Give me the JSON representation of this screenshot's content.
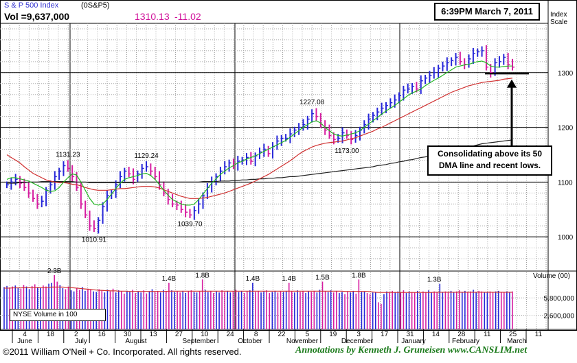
{
  "header": {
    "name": "S & P 500 Index",
    "symbol": "(0S&P5)",
    "volume": "Vol =9,637,000",
    "price": "1310.13",
    "change": "-11.02",
    "timestamp": "6:39PM March 7, 2011",
    "scale_label_1": "Index",
    "scale_label_2": "Scale"
  },
  "footer": {
    "copyright": "©2011 William O'Neil + Co. Incorporated. All rights reserved.",
    "annotations": "Annotations by Kenneth J. Gruneisen  www.CANSLIM.net"
  },
  "volume_box_label": "NYSE Volume in 100",
  "annotation_note_line1": "Consolidating above its 50",
  "annotation_note_line2": "DMA line and recent lows.",
  "colors": {
    "up_bar": "#2626d8",
    "down_bar": "#d61ca0",
    "ma50": "#22b822",
    "ma200_red": "#d03030",
    "ma_long": "#222222",
    "price_text": "#d0109a",
    "footer_green": "#1a7a1a"
  },
  "chart_data": [
    {
      "type": "bar",
      "subtype": "ohlc-price",
      "title": "S & P 500 Index",
      "y_ticks": [
        1000,
        1100,
        1200,
        1300
      ],
      "ylim": [
        940,
        1390
      ],
      "grid": true,
      "dates_ticks": [
        "4",
        "18",
        "2",
        "16",
        "30",
        "13",
        "27",
        "10",
        "24",
        "8",
        "22",
        "5",
        "19",
        "3",
        "17",
        "31",
        "14",
        "28",
        "11",
        "25",
        "11"
      ],
      "month_labels": [
        "June",
        "July",
        "August",
        "September",
        "October",
        "November",
        "December",
        "January",
        "February",
        "March"
      ],
      "annotations": [
        {
          "label": "1131.23",
          "value": 1131.23
        },
        {
          "label": "1010.91",
          "value": 1010.91
        },
        {
          "label": "1129.24",
          "value": 1129.24
        },
        {
          "label": "1039.70",
          "value": 1039.7
        },
        {
          "label": "1227.08",
          "value": 1227.08
        },
        {
          "label": "1173.00",
          "value": 1173.0
        }
      ],
      "close_series": [
        1095,
        1100,
        1105,
        1098,
        1090,
        1080,
        1070,
        1060,
        1065,
        1085,
        1095,
        1110,
        1120,
        1130,
        1125,
        1110,
        1090,
        1060,
        1040,
        1020,
        1015,
        1030,
        1055,
        1075,
        1080,
        1095,
        1110,
        1120,
        1115,
        1105,
        1115,
        1125,
        1128,
        1120,
        1110,
        1095,
        1080,
        1068,
        1060,
        1058,
        1050,
        1045,
        1040,
        1048,
        1060,
        1075,
        1090,
        1100,
        1110,
        1120,
        1128,
        1135,
        1130,
        1138,
        1140,
        1145,
        1138,
        1148,
        1155,
        1160,
        1152,
        1165,
        1175,
        1180,
        1180,
        1188,
        1195,
        1200,
        1205,
        1215,
        1225,
        1220,
        1205,
        1195,
        1185,
        1178,
        1180,
        1190,
        1185,
        1178,
        1185,
        1195,
        1205,
        1215,
        1222,
        1228,
        1235,
        1240,
        1245,
        1250,
        1258,
        1268,
        1270,
        1275,
        1270,
        1285,
        1290,
        1295,
        1300,
        1308,
        1312,
        1318,
        1322,
        1328,
        1320,
        1315,
        1325,
        1335,
        1338,
        1340,
        1310,
        1300,
        1318,
        1320,
        1328,
        1315,
        1310
      ],
      "ma50": [
        1105,
        1108,
        1108,
        1106,
        1104,
        1102,
        1098,
        1094,
        1090,
        1085,
        1083,
        1084,
        1090,
        1100,
        1108,
        1115,
        1113,
        1100,
        1085,
        1070,
        1060,
        1058,
        1060,
        1068,
        1078,
        1088,
        1098,
        1105,
        1108,
        1110,
        1112,
        1115,
        1116,
        1112,
        1105,
        1095,
        1085,
        1076,
        1068,
        1064,
        1060,
        1058,
        1058,
        1060,
        1068,
        1078,
        1088,
        1098,
        1106,
        1114,
        1120,
        1126,
        1130,
        1135,
        1138,
        1142,
        1145,
        1148,
        1152,
        1156,
        1160,
        1164,
        1168,
        1172,
        1176,
        1182,
        1188,
        1194,
        1200,
        1205,
        1210,
        1212,
        1208,
        1200,
        1194,
        1188,
        1185,
        1184,
        1186,
        1188,
        1190,
        1194,
        1200,
        1206,
        1212,
        1218,
        1224,
        1230,
        1235,
        1240,
        1246,
        1252,
        1258,
        1263,
        1266,
        1270,
        1276,
        1281,
        1286,
        1290,
        1295,
        1300,
        1305,
        1310,
        1312,
        1314,
        1315,
        1318,
        1320,
        1321,
        1318,
        1312,
        1310,
        1310,
        1311,
        1312,
        1312
      ],
      "ma200_red": [
        1150,
        1145,
        1140,
        1135,
        1128,
        1122,
        1116,
        1112,
        1108,
        1104,
        1102,
        1100,
        1099,
        1099,
        1098,
        1096,
        1095,
        1093,
        1090,
        1088,
        1086,
        1085,
        1085,
        1085,
        1086,
        1087,
        1088,
        1088,
        1089,
        1090,
        1091,
        1092,
        1092,
        1092,
        1091,
        1089,
        1086,
        1083,
        1080,
        1077,
        1074,
        1072,
        1070,
        1070,
        1070,
        1071,
        1072,
        1074,
        1076,
        1078,
        1080,
        1083,
        1086,
        1089,
        1092,
        1095,
        1098,
        1102,
        1106,
        1110,
        1114,
        1119,
        1124,
        1129,
        1134,
        1139,
        1145,
        1151,
        1156,
        1160,
        1164,
        1167,
        1169,
        1171,
        1172,
        1173,
        1174,
        1175,
        1177,
        1179,
        1181,
        1184,
        1187,
        1190,
        1193,
        1197,
        1200,
        1204,
        1208,
        1212,
        1216,
        1220,
        1224,
        1228,
        1232,
        1236,
        1240,
        1244,
        1248,
        1252,
        1256,
        1260,
        1264,
        1267,
        1270,
        1273,
        1276,
        1278,
        1280,
        1282,
        1283,
        1284,
        1285,
        1286,
        1288,
        1289,
        1290
      ],
      "ma_long": [
        1098,
        1098,
        1098,
        1099,
        1099,
        1100,
        1100,
        1100,
        1101,
        1101,
        1101,
        1101,
        1101,
        1101,
        1101,
        1101,
        1100,
        1100,
        1100,
        1099,
        1099,
        1099,
        1099,
        1099,
        1099,
        1099,
        1099,
        1099,
        1099,
        1099,
        1100,
        1100,
        1100,
        1100,
        1100,
        1100,
        1100,
        1100,
        1100,
        1100,
        1100,
        1100,
        1100,
        1100,
        1100,
        1101,
        1101,
        1101,
        1101,
        1102,
        1102,
        1102,
        1103,
        1103,
        1104,
        1104,
        1105,
        1105,
        1106,
        1106,
        1107,
        1107,
        1108,
        1108,
        1109,
        1110,
        1110,
        1111,
        1112,
        1113,
        1114,
        1115,
        1116,
        1117,
        1118,
        1119,
        1120,
        1121,
        1122,
        1123,
        1124,
        1125,
        1126,
        1127,
        1128,
        1130,
        1131,
        1132,
        1134,
        1135,
        1137,
        1138,
        1140,
        1141,
        1143,
        1145,
        1146,
        1148,
        1150,
        1152,
        1154,
        1155,
        1157,
        1159,
        1161,
        1163,
        1165,
        1166,
        1168,
        1170,
        1171,
        1172,
        1173,
        1174,
        1175,
        1176,
        1177
      ]
    },
    {
      "type": "bar",
      "subtype": "volume",
      "ylabel": "Volume (00)",
      "y_ticks": [
        {
          "label": "5,800,000",
          "value": 5800000
        },
        {
          "label": "2,600,000",
          "value": 2600000
        }
      ],
      "ylim": [
        0,
        10500000
      ],
      "annotations": [
        {
          "label": "2.3B",
          "value": 10000000,
          "index": 18
        },
        {
          "label": "1.4B",
          "value": 8600000,
          "index": 59
        },
        {
          "label": "1.8B",
          "value": 9200000,
          "index": 71
        },
        {
          "label": "1.4B",
          "value": 8600000,
          "index": 89
        },
        {
          "label": "1.4B",
          "value": 8600000,
          "index": 102
        },
        {
          "label": "1.5B",
          "value": 8800000,
          "index": 114
        },
        {
          "label": "1.8B",
          "value": 9200000,
          "index": 127
        },
        {
          "label": "1.3B",
          "value": 8400000,
          "index": 154
        }
      ],
      "values": [
        7800000,
        8000000,
        7600000,
        7900000,
        8100000,
        7700000,
        7500000,
        8200000,
        7900000,
        7400000,
        8000000,
        8300000,
        7800000,
        7600000,
        8100000,
        7900000,
        8400000,
        8600000,
        10000000,
        8800000,
        8200000,
        7600000,
        7400000,
        7900000,
        7200000,
        7000000,
        7600000,
        7300000,
        7800000,
        7100000,
        7500000,
        7300000,
        7000000,
        6900000,
        7400000,
        7200000,
        6800000,
        7300000,
        7000000,
        7500000,
        6800000,
        7200000,
        7000000,
        6600000,
        7100000,
        6900000,
        7300000,
        6700000,
        7000000,
        6800000,
        7200000,
        6600000,
        7000000,
        7400000,
        6900000,
        7100000,
        6800000,
        7300000,
        7100000,
        8600000,
        7200000,
        6900000,
        7000000,
        6800000,
        7100000,
        6700000,
        7000000,
        7200000,
        6900000,
        6800000,
        7000000,
        9200000,
        7300000,
        6900000,
        7100000,
        6700000,
        7000000,
        6800000,
        7200000,
        6900000,
        7100000,
        6800000,
        7000000,
        7300000,
        6900000,
        7100000,
        6700000,
        7000000,
        7200000,
        8600000,
        6900000,
        7100000,
        6800000,
        7000000,
        7200000,
        6700000,
        6900000,
        7100000,
        6800000,
        7000000,
        6900000,
        7100000,
        8600000,
        7000000,
        6800000,
        7200000,
        6900000,
        7100000,
        6700000,
        7000000,
        6900000,
        7100000,
        6800000,
        7300000,
        8800000,
        7000000,
        6900000,
        7200000,
        6800000,
        7100000,
        6700000,
        6900000,
        6500000,
        7000000,
        6800000,
        7100000,
        6600000,
        9200000,
        6900000,
        7000000,
        6700000,
        6500000,
        6800000,
        6900000,
        5000000,
        4700000,
        6500000,
        7000000,
        6800000,
        7100000,
        6900000,
        7000000,
        6800000,
        7200000,
        6700000,
        7000000,
        6900000,
        6800000,
        7100000,
        6700000,
        7000000,
        6900000,
        7200000,
        6800000,
        7000000,
        6900000,
        8400000,
        6900000,
        7000000,
        6800000,
        7100000,
        6900000,
        7000000,
        7200000,
        6800000,
        7100000,
        6900000,
        7000000,
        7300000,
        6800000,
        7100000,
        7000000,
        6800000,
        6900000,
        7000000,
        6800000,
        7000000,
        7100000,
        6900000,
        6800000,
        7000000,
        6900000,
        7000000
      ],
      "ma": [
        7600000,
        7600000,
        7600000,
        7650000,
        7650000,
        7650000,
        7650000,
        7700000,
        7700000,
        7700000,
        7700000,
        7700000,
        7700000,
        7700000,
        7750000,
        7750000,
        7750000,
        7800000,
        7800000,
        7800000,
        7800000,
        7800000,
        7750000,
        7750000,
        7700000,
        7650000,
        7600000,
        7550000,
        7500000,
        7450000,
        7400000,
        7350000,
        7300000,
        7250000,
        7200000,
        7200000,
        7150000,
        7150000,
        7100000,
        7100000,
        7100000,
        7050000,
        7050000,
        7050000,
        7050000,
        7000000,
        7000000,
        7000000,
        7000000,
        7000000,
        7000000,
        7000000,
        7000000,
        7000000,
        7000000,
        7000000,
        7000000,
        7000000,
        7000000,
        7050000,
        7050000,
        7050000,
        7050000,
        7050000,
        7050000,
        7050000,
        7050000,
        7050000,
        7050000,
        7050000,
        7050000,
        7050000,
        7050000,
        7050000,
        7050000,
        7050000,
        7050000,
        7050000,
        7050000,
        7050000,
        7050000,
        7050000,
        7050000,
        7050000,
        7050000,
        7050000,
        7050000,
        7050000,
        7050000,
        7050000,
        7050000,
        7050000,
        7050000,
        7050000,
        7050000,
        7050000,
        7050000,
        7050000,
        7050000,
        7050000,
        7050000,
        7050000,
        7050000,
        7050000,
        7050000,
        7050000,
        7050000,
        7050000,
        7050000,
        7050000,
        7050000,
        7050000,
        7050000,
        7050000,
        7050000,
        7050000,
        7050000,
        7050000,
        7050000,
        7050000,
        7050000,
        7050000,
        7000000,
        7000000,
        7000000,
        7000000,
        7000000,
        7000000,
        7000000,
        7000000,
        7000000,
        6950000,
        6900000,
        6850000,
        6800000,
        6800000,
        6800000,
        6800000,
        6800000,
        6800000,
        6800000,
        6800000,
        6800000,
        6800000,
        6800000,
        6800000,
        6800000,
        6800000,
        6800000,
        6800000,
        6800000,
        6800000,
        6800000,
        6800000,
        6850000,
        6850000,
        6850000,
        6850000,
        6850000,
        6850000,
        6850000,
        6850000,
        6850000,
        6850000,
        6850000,
        6850000,
        6850000,
        6850000,
        6850000,
        6850000,
        6850000,
        6850000,
        6850000,
        6850000,
        6850000,
        6850000,
        6850000,
        6850000,
        6850000,
        6850000,
        6850000,
        6850000,
        6850000
      ]
    }
  ]
}
